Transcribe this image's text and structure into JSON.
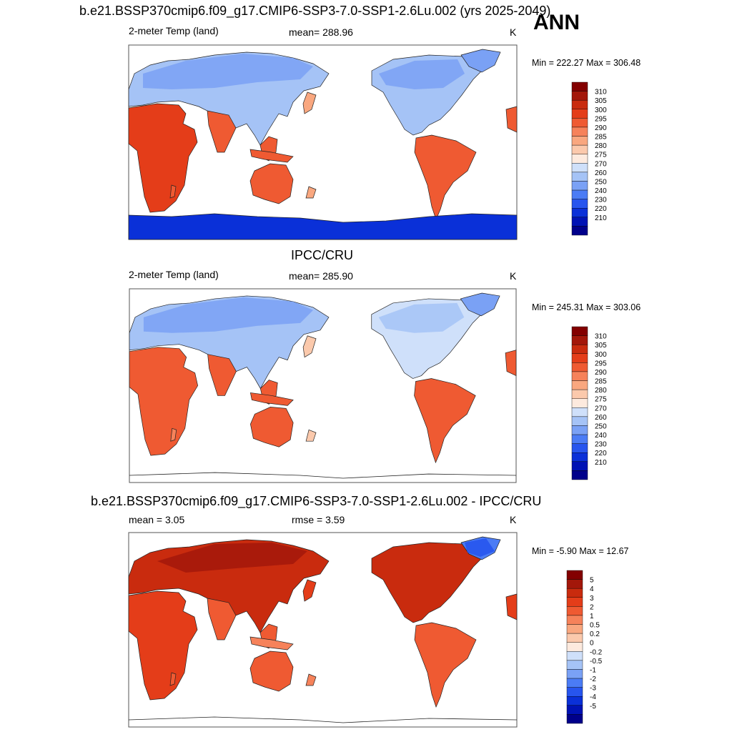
{
  "header": {
    "season": "ANN"
  },
  "palette": {
    "abs": [
      "#00008b",
      "#0012b4",
      "#0a30d8",
      "#2755ee",
      "#4b7cf5",
      "#7aa1f5",
      "#a5c3f6",
      "#cfe0fa",
      "#fdeade",
      "#fbc9ac",
      "#f9a77f",
      "#f6825a",
      "#ef5a32",
      "#e43d19",
      "#c92b0e",
      "#a3170a",
      "#830000"
    ],
    "diff": [
      "#00008b",
      "#0012b4",
      "#0a30d8",
      "#2755ee",
      "#4b7cf5",
      "#7aa1f5",
      "#a5c3f6",
      "#cfe0fa",
      "#fdeade",
      "#fbc9ac",
      "#f9a77f",
      "#f6825a",
      "#ef5a32",
      "#e43d19",
      "#c92b0e",
      "#a3170a",
      "#830000"
    ],
    "coast": "#222222",
    "frame": "#555555"
  },
  "chart_data": [
    {
      "type": "heatmap",
      "title": "b.e21.BSSP370cmip6.f09_g17.CMIP6-SSP3-7.0-SSP1-2.6Lu.002 (yrs 2025-2049)",
      "left_label": "2-meter Temp (land)",
      "center_label": "mean= 288.96",
      "units": "K",
      "min_max": "Min = 222.27 Max = 306.48",
      "min": 222.27,
      "max": 306.48,
      "antarctica": true,
      "colorbar_labels": [
        "310",
        "305",
        "300",
        "295",
        "290",
        "285",
        "280",
        "275",
        "270",
        "260",
        "250",
        "240",
        "230",
        "220",
        "210"
      ]
    },
    {
      "type": "heatmap",
      "title": "IPCC/CRU",
      "left_label": "2-meter Temp (land)",
      "center_label": "mean= 285.90",
      "units": "K",
      "min_max": "Min = 245.31 Max = 303.06",
      "min": 245.31,
      "max": 303.06,
      "antarctica": false,
      "colorbar_labels": [
        "310",
        "305",
        "300",
        "295",
        "290",
        "285",
        "280",
        "275",
        "270",
        "260",
        "250",
        "240",
        "230",
        "220",
        "210"
      ]
    },
    {
      "type": "heatmap",
      "title": "b.e21.BSSP370cmip6.f09_g17.CMIP6-SSP3-7.0-SSP1-2.6Lu.002 - IPCC/CRU",
      "left_label": "mean =   3.05",
      "center_label": "rmse =   3.59",
      "units": "K",
      "min_max": "Min =  -5.90 Max =  12.67",
      "min": -5.9,
      "max": 12.67,
      "antarctica": false,
      "colorbar_labels": [
        "5",
        "4",
        "3",
        "2",
        "1",
        "0.5",
        "0.2",
        "0",
        "-0.2",
        "-0.5",
        "-1",
        "-2",
        "-3",
        "-4",
        "-5"
      ]
    }
  ]
}
